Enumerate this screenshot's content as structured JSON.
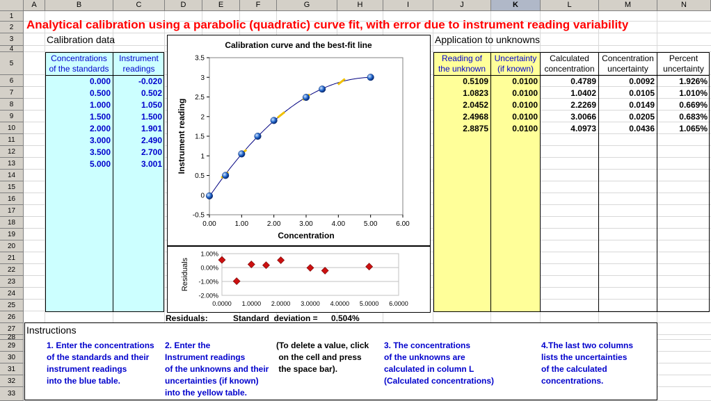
{
  "columns": [
    "A",
    "B",
    "C",
    "D",
    "E",
    "F",
    "G",
    "H",
    "I",
    "J",
    "K",
    "L",
    "M",
    "N"
  ],
  "selected_column": "K",
  "rows": [
    "1",
    "2",
    "3",
    "4",
    "5",
    "6",
    "7",
    "8",
    "9",
    "10",
    "11",
    "12",
    "13",
    "14",
    "15",
    "16",
    "17",
    "18",
    "19",
    "20",
    "21",
    "22",
    "23",
    "24",
    "25",
    "26",
    "27",
    "28",
    "29",
    "30",
    "31",
    "32",
    "33"
  ],
  "title": "Analytical calibration using a parabolic (quadratic) curve fit, with error due to instrument reading variability",
  "calibration": {
    "heading": "Calibration data",
    "col1_header": [
      "Concentrations",
      "of the standards"
    ],
    "col2_header": [
      "Instrument",
      "readings"
    ],
    "rows": [
      {
        "conc": "0.000",
        "reading": "-0.020"
      },
      {
        "conc": "0.500",
        "reading": "0.502"
      },
      {
        "conc": "1.000",
        "reading": "1.050"
      },
      {
        "conc": "1.500",
        "reading": "1.500"
      },
      {
        "conc": "2.000",
        "reading": "1.901"
      },
      {
        "conc": "3.000",
        "reading": "2.490"
      },
      {
        "conc": "3.500",
        "reading": "2.700"
      },
      {
        "conc": "5.000",
        "reading": "3.001"
      }
    ]
  },
  "unknowns": {
    "heading": "Application to unknowns",
    "headers": [
      [
        "Reading of",
        "the unknown"
      ],
      [
        "Uncertainty",
        "(if known)"
      ],
      [
        "Calculated",
        "concentration"
      ],
      [
        "Concentration",
        "uncertainty"
      ],
      [
        "Percent",
        "uncertainty"
      ]
    ],
    "rows": [
      {
        "reading": "0.5109",
        "uncert": "0.0100",
        "calc": "0.4789",
        "conc_unc": "0.0092",
        "pct": "1.926%"
      },
      {
        "reading": "1.0823",
        "uncert": "0.0100",
        "calc": "1.0402",
        "conc_unc": "0.0105",
        "pct": "1.010%"
      },
      {
        "reading": "2.0452",
        "uncert": "0.0100",
        "calc": "2.2269",
        "conc_unc": "0.0149",
        "pct": "0.669%"
      },
      {
        "reading": "2.4968",
        "uncert": "0.0100",
        "calc": "3.0066",
        "conc_unc": "0.0205",
        "pct": "0.683%"
      },
      {
        "reading": "2.8875",
        "uncert": "0.0100",
        "calc": "4.0973",
        "conc_unc": "0.0436",
        "pct": "1.065%"
      }
    ]
  },
  "residuals_summary": {
    "label": "Residuals:",
    "sd_label": "Standard  deviation =",
    "sd_value": "0.504%"
  },
  "instructions": {
    "heading": "Instructions",
    "col1": [
      "1. Enter the concentrations",
      "of the standards and their",
      "instrument readings",
      "into the blue table."
    ],
    "col2": [
      "2. Enter the",
      "Instrument readings",
      "of the unknowns and their",
      "uncertainties (if known)",
      "into the yellow table."
    ],
    "col3": [
      "(To delete a value, click",
      " on the cell and press",
      " the space bar)."
    ],
    "col4": [
      "3. The concentrations",
      "of the unknowns are",
      "calculated in column L",
      "(Calculated concentrations)"
    ],
    "col5": [
      "4.The last two columns",
      "lists the uncertainties",
      "of the calculated",
      "concentrations."
    ]
  },
  "colors": {
    "blue_table": "#ccffff",
    "yellow_table": "#ffff99",
    "title_red": "#ff0000",
    "instr_blue": "#0000cc",
    "marker_blue": "#1e62c8",
    "marker_red": "#cc1010",
    "unknown_marker": "#f0c000"
  },
  "chart_data": [
    {
      "type": "scatter",
      "title": "Calibration curve and the best-fit line",
      "xlabel": "Concentration",
      "ylabel": "Instrument reading",
      "xlim": [
        0,
        6
      ],
      "ylim": [
        -0.5,
        3.5
      ],
      "x_ticks": [
        "0.00",
        "1.00",
        "2.00",
        "3.00",
        "4.00",
        "5.00",
        "6.00"
      ],
      "y_ticks": [
        "-0.5",
        "0",
        "0.5",
        "1",
        "1.5",
        "2",
        "2.5",
        "3",
        "3.5"
      ],
      "grid": false,
      "series": [
        {
          "x": [
            0,
            0.5,
            1.0,
            1.5,
            2.0,
            3.0,
            3.5,
            5.0
          ],
          "y": [
            -0.02,
            0.502,
            1.05,
            1.5,
            1.901,
            2.49,
            2.7,
            3.001
          ]
        },
        {
          "x": [
            0.4789,
            1.0402,
            2.2269,
            3.0066,
            4.0973
          ],
          "y": [
            0.5109,
            1.0823,
            2.0452,
            2.4968,
            2.8875
          ]
        }
      ],
      "fit": {
        "degree": 2
      }
    },
    {
      "type": "scatter",
      "ylabel": "Residuals",
      "xlim": [
        0,
        6
      ],
      "ylim": [
        -0.02,
        0.01
      ],
      "x_ticks": [
        "0.0000",
        "1.0000",
        "2.0000",
        "3.0000",
        "4.0000",
        "5.0000",
        "6.0000"
      ],
      "y_ticks": [
        "1.00%",
        "0.00%",
        "-1.00%",
        "-2.00%"
      ],
      "grid": true,
      "series": [
        {
          "x": [
            0,
            0.5,
            1.0,
            1.5,
            2.0,
            3.0,
            3.5,
            5.0
          ],
          "y": [
            0.0055,
            -0.0098,
            0.0023,
            0.0017,
            0.0053,
            -0.0002,
            -0.0022,
            0.0007
          ]
        }
      ]
    }
  ]
}
